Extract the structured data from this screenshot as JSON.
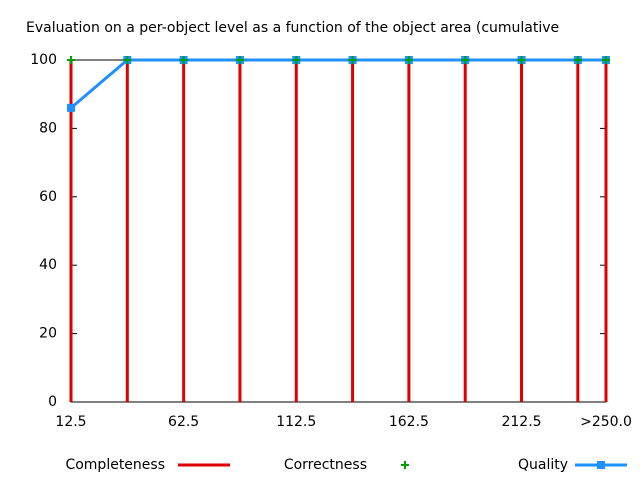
{
  "chart_data": {
    "type": "line",
    "title": "Evaluation on a per-object level as a function of the object area (cumulative",
    "x": [
      12.5,
      37.5,
      62.5,
      87.5,
      112.5,
      137.5,
      162.5,
      187.5,
      212.5,
      237.5,
      250
    ],
    "xlim": [
      12.5,
      250
    ],
    "xticks": [
      12.5,
      62.5,
      112.5,
      162.5,
      212.5,
      {
        "value": 250,
        "label": ">250.0"
      }
    ],
    "ylim": [
      0,
      100
    ],
    "yticks": [
      0,
      20,
      40,
      60,
      80,
      100
    ],
    "series": [
      {
        "name": "Completeness",
        "color": "#e00000",
        "style": "impulses",
        "values": [
          100,
          100,
          100,
          100,
          100,
          100,
          100,
          100,
          100,
          100,
          100
        ]
      },
      {
        "name": "Correctness",
        "color": "#00a000",
        "style": "points",
        "values": [
          100,
          100,
          100,
          100,
          100,
          100,
          100,
          100,
          100,
          100,
          100
        ]
      },
      {
        "name": "Quality",
        "color": "#1e90ff",
        "style": "linespoints",
        "values": [
          86,
          100,
          100,
          100,
          100,
          100,
          100,
          100,
          100,
          100,
          100
        ]
      }
    ]
  }
}
